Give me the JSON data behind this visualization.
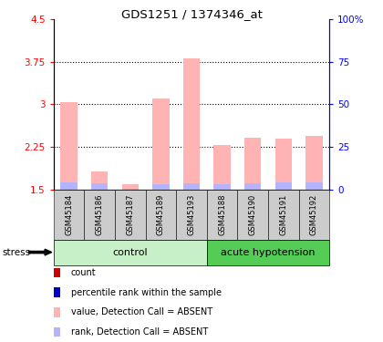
{
  "title": "GDS1251 / 1374346_at",
  "samples": [
    "GSM45184",
    "GSM45186",
    "GSM45187",
    "GSM45189",
    "GSM45193",
    "GSM45188",
    "GSM45190",
    "GSM45191",
    "GSM45192"
  ],
  "value_bars": [
    3.04,
    1.83,
    1.6,
    3.1,
    3.8,
    2.29,
    2.42,
    2.4,
    2.45
  ],
  "rank_bars": [
    1.63,
    1.62,
    1.52,
    1.6,
    1.62,
    1.6,
    1.62,
    1.63,
    1.63
  ],
  "base": 1.5,
  "ylim_left": [
    1.5,
    4.5
  ],
  "ylim_right": [
    0,
    100
  ],
  "yticks_left": [
    1.5,
    2.25,
    3.0,
    3.75,
    4.5
  ],
  "ytick_labels_left": [
    "1.5",
    "2.25",
    "3",
    "3.75",
    "4.5"
  ],
  "yticks_right": [
    0,
    25,
    50,
    75,
    100
  ],
  "ytick_labels_right": [
    "0",
    "25",
    "50",
    "75",
    "100%"
  ],
  "hlines": [
    2.25,
    3.0,
    3.75
  ],
  "color_value": "#ffb3b3",
  "color_rank": "#b3b3ff",
  "color_control_bg": "#c8f0c8",
  "color_acute_bg": "#55cc55",
  "color_xlabel_bg": "#cccccc",
  "stress_label": "stress",
  "group_labels": [
    "control",
    "acute hypotension"
  ],
  "n_control": 5,
  "n_acute": 4,
  "legend_items": [
    {
      "color": "#cc0000",
      "label": "count"
    },
    {
      "color": "#0000cc",
      "label": "percentile rank within the sample"
    },
    {
      "color": "#ffb3b3",
      "label": "value, Detection Call = ABSENT"
    },
    {
      "color": "#b3b3ff",
      "label": "rank, Detection Call = ABSENT"
    }
  ],
  "figsize": [
    4.2,
    3.75
  ],
  "dpi": 100
}
